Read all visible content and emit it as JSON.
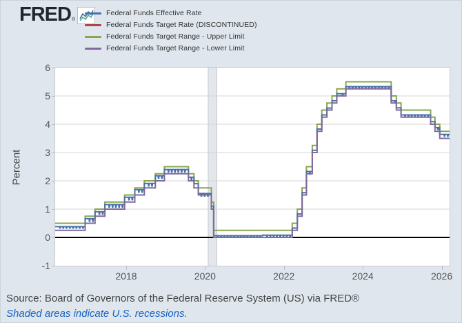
{
  "header": {
    "logo_text": "FRED",
    "registered_mark": "®"
  },
  "chart_data": {
    "type": "line",
    "title": "",
    "ylabel": "Percent",
    "xlabel": "",
    "xlim": [
      2016.2,
      2026.2
    ],
    "ylim": [
      -1,
      6
    ],
    "x_ticks": [
      2018,
      2020,
      2022,
      2024,
      2026
    ],
    "x_tick_labels": [
      "2018",
      "2020",
      "2022",
      "2024",
      "2026"
    ],
    "y_ticks": [
      6,
      5,
      4,
      3,
      2,
      1,
      0,
      -1
    ],
    "y_tick_labels": [
      "6",
      "5",
      "4",
      "3",
      "2",
      "1",
      "0",
      "-1"
    ],
    "grid_y": [
      1,
      2,
      3,
      4,
      5
    ],
    "zero_line": 0,
    "grid_on": true,
    "legend_position": "top-left",
    "recessions": [
      {
        "start": 2020.08,
        "end": 2020.3
      }
    ],
    "series": [
      {
        "name": "Federal Funds Effective Rate",
        "color": "#4572A7",
        "style": "daily_dips",
        "points": [
          [
            2016.2,
            0.38
          ],
          [
            2016.96,
            0.66
          ],
          [
            2017.21,
            0.91
          ],
          [
            2017.46,
            1.16
          ],
          [
            2017.96,
            1.42
          ],
          [
            2018.22,
            1.69
          ],
          [
            2018.46,
            1.91
          ],
          [
            2018.74,
            2.18
          ],
          [
            2018.97,
            2.4
          ],
          [
            2019.58,
            2.13
          ],
          [
            2019.72,
            1.9
          ],
          [
            2019.83,
            1.55
          ],
          [
            2020.16,
            1.1
          ],
          [
            2020.22,
            0.06
          ],
          [
            2021.46,
            0.08
          ],
          [
            2022.21,
            0.33
          ],
          [
            2022.34,
            0.83
          ],
          [
            2022.46,
            1.58
          ],
          [
            2022.57,
            2.33
          ],
          [
            2022.72,
            3.08
          ],
          [
            2022.84,
            3.83
          ],
          [
            2022.96,
            4.33
          ],
          [
            2023.09,
            4.57
          ],
          [
            2023.22,
            4.83
          ],
          [
            2023.34,
            5.08
          ],
          [
            2023.57,
            5.33
          ],
          [
            2024.72,
            4.83
          ],
          [
            2024.85,
            4.58
          ],
          [
            2024.97,
            4.33
          ],
          [
            2025.72,
            4.09
          ],
          [
            2025.83,
            3.88
          ],
          [
            2025.95,
            3.64
          ]
        ]
      },
      {
        "name": "Federal Funds Target Rate (DISCONTINUED)",
        "color": "#AA4643",
        "style": "step",
        "points": []
      },
      {
        "name": "Federal Funds Target Range - Upper Limit",
        "color": "#89A54E",
        "style": "step",
        "points": [
          [
            2016.2,
            0.5
          ],
          [
            2016.96,
            0.75
          ],
          [
            2017.21,
            1.0
          ],
          [
            2017.46,
            1.25
          ],
          [
            2017.96,
            1.5
          ],
          [
            2018.22,
            1.75
          ],
          [
            2018.46,
            2.0
          ],
          [
            2018.74,
            2.25
          ],
          [
            2018.97,
            2.5
          ],
          [
            2019.58,
            2.25
          ],
          [
            2019.72,
            2.0
          ],
          [
            2019.83,
            1.75
          ],
          [
            2020.16,
            1.25
          ],
          [
            2020.22,
            0.25
          ],
          [
            2022.21,
            0.5
          ],
          [
            2022.34,
            1.0
          ],
          [
            2022.46,
            1.75
          ],
          [
            2022.57,
            2.5
          ],
          [
            2022.72,
            3.25
          ],
          [
            2022.84,
            4.0
          ],
          [
            2022.96,
            4.5
          ],
          [
            2023.09,
            4.75
          ],
          [
            2023.22,
            5.0
          ],
          [
            2023.34,
            5.25
          ],
          [
            2023.57,
            5.5
          ],
          [
            2024.72,
            5.0
          ],
          [
            2024.85,
            4.75
          ],
          [
            2024.97,
            4.5
          ],
          [
            2025.72,
            4.25
          ],
          [
            2025.83,
            4.0
          ],
          [
            2025.95,
            3.75
          ]
        ]
      },
      {
        "name": "Federal Funds Target Range - Lower Limit",
        "color": "#80699B",
        "style": "step",
        "points": [
          [
            2016.2,
            0.25
          ],
          [
            2016.96,
            0.5
          ],
          [
            2017.21,
            0.75
          ],
          [
            2017.46,
            1.0
          ],
          [
            2017.96,
            1.25
          ],
          [
            2018.22,
            1.5
          ],
          [
            2018.46,
            1.75
          ],
          [
            2018.74,
            2.0
          ],
          [
            2018.97,
            2.25
          ],
          [
            2019.58,
            2.0
          ],
          [
            2019.72,
            1.75
          ],
          [
            2019.83,
            1.5
          ],
          [
            2020.16,
            1.0
          ],
          [
            2020.22,
            0.0
          ],
          [
            2022.21,
            0.25
          ],
          [
            2022.34,
            0.75
          ],
          [
            2022.46,
            1.5
          ],
          [
            2022.57,
            2.25
          ],
          [
            2022.72,
            3.0
          ],
          [
            2022.84,
            3.75
          ],
          [
            2022.96,
            4.25
          ],
          [
            2023.09,
            4.5
          ],
          [
            2023.22,
            4.75
          ],
          [
            2023.34,
            5.0
          ],
          [
            2023.57,
            5.25
          ],
          [
            2024.72,
            4.75
          ],
          [
            2024.85,
            4.5
          ],
          [
            2024.97,
            4.25
          ],
          [
            2025.72,
            4.0
          ],
          [
            2025.83,
            3.75
          ],
          [
            2025.95,
            3.5
          ]
        ]
      }
    ],
    "colors": {
      "plot_background": "#ffffff",
      "page_background": "#dfe6ed",
      "gridline": "#d4d4d4",
      "plot_border": "#c9c9c9",
      "zero_line": "#000000",
      "recession_fill": "#e3e6ea",
      "recession_edge": "#c6cad0",
      "tick_label": "#555555",
      "link": "#1362c4"
    }
  },
  "footer": {
    "source": "Source: Board of Governors of the Federal Reserve System (US) via FRED®",
    "note": "Shaded areas indicate U.S. recessions."
  }
}
